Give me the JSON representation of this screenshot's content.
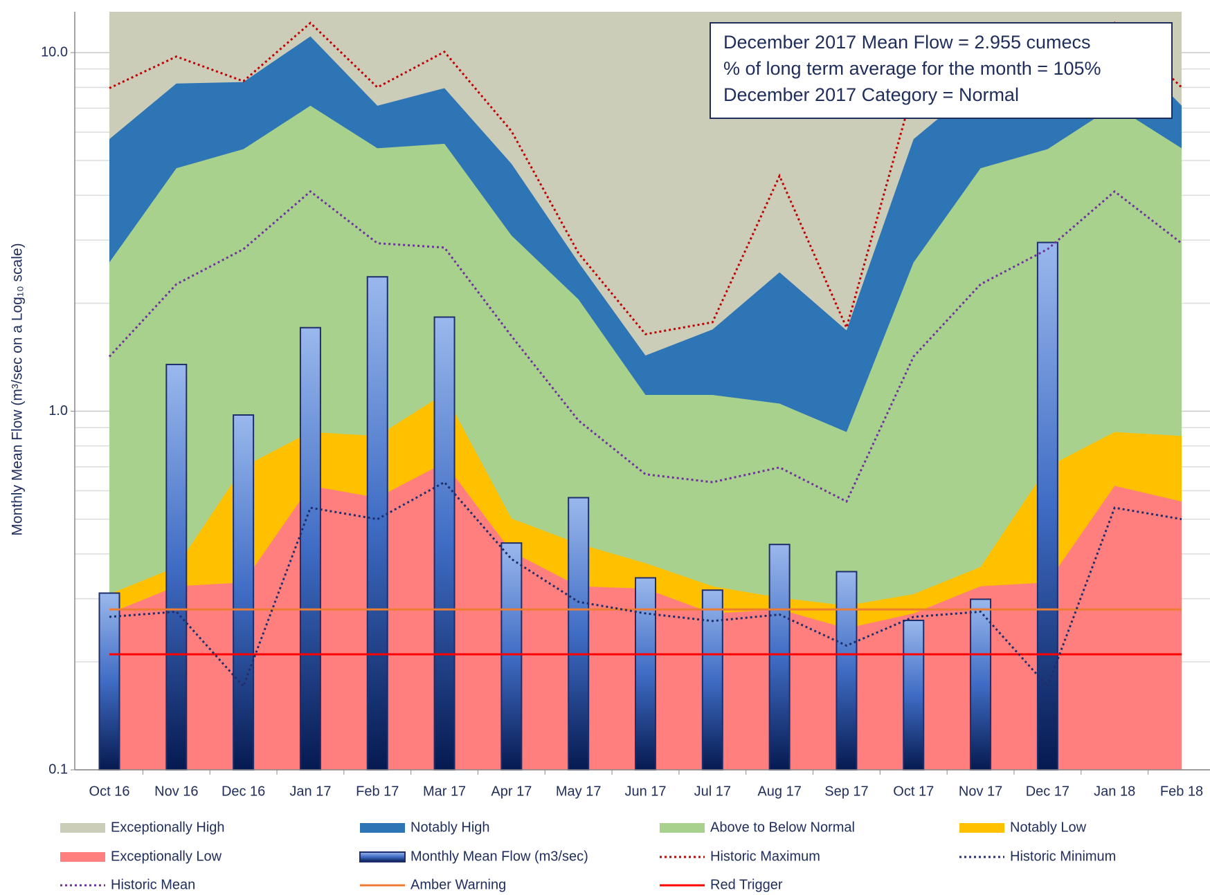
{
  "chart_data": {
    "type": "combo",
    "y_label": "Monthly Mean Flow (m³/sec on a Log₁₀ scale)",
    "annotations": [
      "December 2017 Mean Flow = 2.955 cumecs",
      "% of long term average for the month = 105%",
      "December 2017 Category = Normal"
    ],
    "categories": [
      "Oct 16",
      "Nov 16",
      "Dec 16",
      "Jan 17",
      "Feb 17",
      "Mar 17",
      "Apr 17",
      "May 17",
      "Jun 17",
      "Jul 17",
      "Aug 17",
      "Sep 17",
      "Oct 17",
      "Nov 17",
      "Dec 17",
      "Jan 18",
      "Feb 18"
    ],
    "log_scale": true,
    "ylim": [
      0.1,
      13
    ],
    "yticks": [
      0.1,
      {
        "value": 1,
        "label": "1.0"
      },
      {
        "value": 10,
        "label": "10.0"
      }
    ],
    "grid": true,
    "minor_grid": true,
    "series": [
      {
        "name": "Exceptionally High",
        "kind": "band",
        "color": "#cccdb9"
      },
      {
        "name": "Notably High",
        "kind": "band",
        "color": "#2e75b6",
        "values": [
          5.74,
          8.2,
          8.28,
          11.1,
          7.11,
          7.96,
          4.9,
          2.6,
          1.43,
          1.69,
          2.44,
          1.68,
          5.74,
          8.2,
          8.28,
          11.1,
          7.11
        ]
      },
      {
        "name": "Above to Below Normal",
        "kind": "band",
        "color": "#a9d18e",
        "values": [
          2.6,
          4.76,
          5.38,
          7.11,
          5.41,
          5.57,
          3.09,
          2.05,
          1.11,
          1.11,
          1.05,
          0.875,
          2.6,
          4.76,
          5.38,
          7.11,
          5.41
        ]
      },
      {
        "name": "Notably Low",
        "kind": "band",
        "color": "#ffc000",
        "values": [
          0.309,
          0.368,
          0.7,
          0.875,
          0.853,
          1.12,
          0.502,
          0.427,
          0.377,
          0.325,
          0.302,
          0.287,
          0.309,
          0.368,
          0.7,
          0.875,
          0.853
        ]
      },
      {
        "name": "Exceptionally Low",
        "kind": "band",
        "color": "#ff7f7f",
        "values": [
          0.273,
          0.325,
          0.333,
          0.619,
          0.574,
          0.718,
          0.406,
          0.325,
          0.32,
          0.273,
          0.28,
          0.248,
          0.273,
          0.325,
          0.333,
          0.619,
          0.56
        ]
      },
      {
        "name": "Monthly Mean Flow (m3/sec)",
        "kind": "bar",
        "color": "#1f2d6b",
        "values": [
          0.311,
          1.35,
          0.976,
          1.71,
          2.37,
          1.83,
          0.429,
          0.574,
          0.343,
          0.317,
          0.425,
          0.357,
          0.261,
          0.299,
          2.955,
          null,
          null
        ]
      },
      {
        "name": "Historic Maximum",
        "kind": "line",
        "dash": true,
        "color": "#c00000",
        "values": [
          7.96,
          9.75,
          8.32,
          12.1,
          8.0,
          10.05,
          6.04,
          2.76,
          1.64,
          1.77,
          4.53,
          1.71,
          7.96,
          9.75,
          8.32,
          12.1,
          8.0
        ]
      },
      {
        "name": "Historic Minimum",
        "kind": "line",
        "dash": true,
        "color": "#1f2d6b",
        "values": [
          0.267,
          0.276,
          0.171,
          0.538,
          0.5,
          0.634,
          0.387,
          0.294,
          0.273,
          0.26,
          0.271,
          0.222,
          0.267,
          0.276,
          0.171,
          0.538,
          0.5
        ]
      },
      {
        "name": "Historic Mean",
        "kind": "line",
        "dash": true,
        "color": "#7030a0",
        "values": [
          1.42,
          2.26,
          2.83,
          4.1,
          2.94,
          2.86,
          1.62,
          0.942,
          0.667,
          0.634,
          0.697,
          0.56,
          1.42,
          2.26,
          2.83,
          4.1,
          2.94
        ]
      },
      {
        "name": "Amber Warning",
        "kind": "hline",
        "color": "#ed7d31",
        "value": 0.28
      },
      {
        "name": "Red Trigger",
        "kind": "hline",
        "color": "#ff0000",
        "value": 0.21
      }
    ]
  }
}
